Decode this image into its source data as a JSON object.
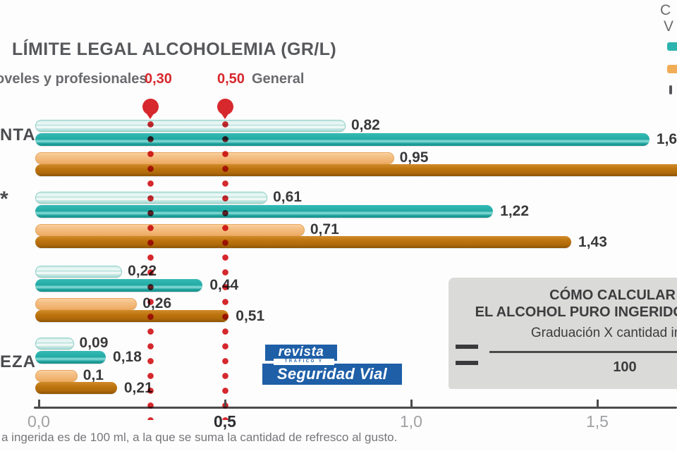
{
  "title": "LÍMITE LEGAL ALCOHOLEMIA (GR/L)",
  "limits": {
    "left_label": "oveles y profesionales",
    "left_value": "0,30",
    "right_value": "0,50",
    "right_label": "General"
  },
  "legend_fragment": {
    "line1": "C",
    "line2": "V"
  },
  "chart_data": {
    "type": "bar",
    "orientation": "horizontal",
    "title": "LÍMITE LEGAL ALCOHOLEMIA (GR/L)",
    "unit": "gr/l",
    "xlim": [
      0,
      1.72
    ],
    "grid": false,
    "x_ticks": [
      {
        "label": "0,0",
        "value": 0,
        "emph": false
      },
      {
        "label": "0,5",
        "value": 0.5,
        "emph": true
      },
      {
        "label": "1,0",
        "value": 1.0,
        "emph": false
      },
      {
        "label": "1,5",
        "value": 1.5,
        "emph": false
      }
    ],
    "limit_lines": [
      {
        "display": "0,30",
        "value": 0.3,
        "label": "oveles y profesionales"
      },
      {
        "display": "0,50",
        "value": 0.5,
        "label": "General"
      }
    ],
    "series": [
      {
        "id": "teal-light",
        "color": "#c9e8e2"
      },
      {
        "id": "teal-dark",
        "color": "#2bb4af"
      },
      {
        "id": "orange-light",
        "color": "#f2ba7b"
      },
      {
        "id": "orange-dark",
        "color": "#b97110"
      }
    ],
    "rows": [
      {
        "category": "NTA",
        "bars": [
          {
            "series": "teal-light",
            "value": 0.82,
            "label": "0,82"
          },
          {
            "series": "teal-dark",
            "value": 1.64,
            "label": "1,6"
          },
          {
            "series": "orange-light",
            "value": 0.95,
            "label": "0,95"
          },
          {
            "series": "orange-dark",
            "value": 1.9,
            "label": ""
          }
        ]
      },
      {
        "category": "*",
        "bars": [
          {
            "series": "teal-light",
            "value": 0.61,
            "label": "0,61"
          },
          {
            "series": "teal-dark",
            "value": 1.22,
            "label": "1,22"
          },
          {
            "series": "orange-light",
            "value": 0.71,
            "label": "0,71"
          },
          {
            "series": "orange-dark",
            "value": 1.43,
            "label": "1,43"
          }
        ]
      },
      {
        "category": "",
        "bars": [
          {
            "series": "teal-light",
            "value": 0.22,
            "label": "0,22"
          },
          {
            "series": "teal-dark",
            "value": 0.44,
            "label": "0,44"
          },
          {
            "series": "orange-light",
            "value": 0.26,
            "label": "0,26"
          },
          {
            "series": "orange-dark",
            "value": 0.51,
            "label": "0,51"
          }
        ]
      },
      {
        "category": "EZA",
        "bars": [
          {
            "series": "teal-light",
            "value": 0.09,
            "label": "0,09"
          },
          {
            "series": "teal-dark",
            "value": 0.18,
            "label": "0,18"
          },
          {
            "series": "orange-light",
            "value": 0.1,
            "label": "0,1"
          },
          {
            "series": "orange-dark",
            "value": 0.21,
            "label": "0,21"
          }
        ]
      }
    ]
  },
  "formula_box": {
    "title_line1": "CÓMO CALCULAR",
    "title_line2": "EL ALCOHOL PURO INGERIDO",
    "numerator": "Graduación X cantidad ingerida",
    "denominator": "100"
  },
  "logo": {
    "top": "revista",
    "strip": "TRÁFICO Y",
    "main": "Seguridad Vial"
  },
  "footnote": "a ingerida es de 100 ml, a la que se suma la cantidad de refresco al gusto.",
  "colors": {
    "red": "#d7282d",
    "teal_dark": "#2bb4af",
    "teal_light": "#c9e8e2",
    "orange_light": "#f2ba7b",
    "orange_dark": "#b97110",
    "logo_blue": "#1e5fa7",
    "box_gray": "#dadad8"
  }
}
